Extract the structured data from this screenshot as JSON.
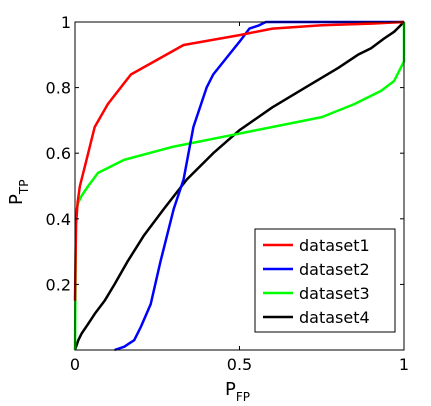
{
  "chart_data": {
    "type": "line",
    "title": "",
    "xlabel": "P",
    "xlabel_sub": "FP",
    "ylabel": "P",
    "ylabel_sub": "TP",
    "xlim": [
      0,
      1
    ],
    "ylim": [
      0,
      1
    ],
    "xticks": [
      0,
      0.5,
      1
    ],
    "xtick_labels": [
      "0",
      "0.5",
      "1"
    ],
    "yticks": [
      0.2,
      0.4,
      0.6,
      0.8,
      1
    ],
    "ytick_labels": [
      "0.2",
      "0.4",
      "0.6",
      "0.8",
      "1"
    ],
    "grid": false,
    "legend_position": "bottom-right",
    "series": [
      {
        "name": "dataset1",
        "color": "#ff0000",
        "x": [
          0,
          0.003,
          0.008,
          0.015,
          0.03,
          0.06,
          0.1,
          0.17,
          0.33,
          0.5,
          0.6,
          0.75,
          0.9,
          1
        ],
        "y": [
          0.15,
          0.38,
          0.45,
          0.5,
          0.56,
          0.68,
          0.75,
          0.84,
          0.93,
          0.96,
          0.98,
          0.99,
          0.995,
          1
        ]
      },
      {
        "name": "dataset2",
        "color": "#0000ff",
        "x": [
          0.12,
          0.15,
          0.18,
          0.2,
          0.23,
          0.26,
          0.3,
          0.33,
          0.36,
          0.4,
          0.42,
          0.46,
          0.5,
          0.53,
          0.56,
          0.58,
          0.65,
          0.8,
          0.95,
          1
        ],
        "y": [
          0,
          0.01,
          0.03,
          0.07,
          0.14,
          0.27,
          0.43,
          0.52,
          0.68,
          0.8,
          0.84,
          0.89,
          0.94,
          0.98,
          0.99,
          1,
          1,
          1,
          1,
          1
        ]
      },
      {
        "name": "dataset3",
        "color": "#00ff00",
        "x": [
          0,
          0.003,
          0.01,
          0.02,
          0.04,
          0.07,
          0.15,
          0.3,
          0.45,
          0.6,
          0.75,
          0.85,
          0.93,
          0.97,
          0.99,
          1,
          1
        ],
        "y": [
          0,
          0.42,
          0.45,
          0.47,
          0.5,
          0.54,
          0.58,
          0.62,
          0.65,
          0.68,
          0.71,
          0.75,
          0.79,
          0.82,
          0.86,
          0.88,
          1
        ]
      },
      {
        "name": "dataset4",
        "color": "#000000",
        "x": [
          0,
          0.01,
          0.02,
          0.04,
          0.06,
          0.09,
          0.12,
          0.16,
          0.21,
          0.27,
          0.34,
          0.42,
          0.5,
          0.6,
          0.7,
          0.8,
          0.86,
          0.9,
          0.94,
          0.97,
          1
        ],
        "y": [
          0,
          0.03,
          0.05,
          0.08,
          0.11,
          0.15,
          0.2,
          0.27,
          0.35,
          0.43,
          0.52,
          0.6,
          0.67,
          0.74,
          0.8,
          0.86,
          0.9,
          0.92,
          0.95,
          0.97,
          1
        ]
      }
    ]
  }
}
